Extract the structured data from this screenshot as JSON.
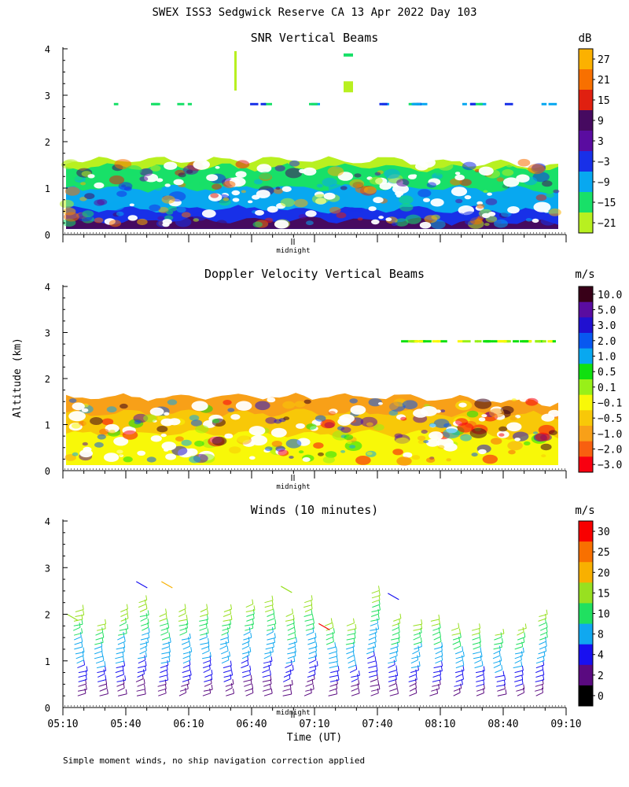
{
  "page": {
    "title": "SWEX ISS3 Sedgwick Reserve CA  13 Apr 2022 Day 103",
    "ylabel": "Altitude (km)",
    "xlabel": "Time (UT)",
    "footnote": "Simple moment winds, no ship navigation correction applied",
    "midnight_label": "midnight"
  },
  "chart_data": [
    {
      "type": "heatmap",
      "title": "SNR Vertical Beams",
      "colorbar_title": "dB",
      "ylim": [
        0,
        4
      ],
      "yticks": [
        0,
        1,
        2,
        3,
        4
      ],
      "xlim_hours": [
        5.1667,
        9.1667
      ],
      "colorbar": {
        "labels": [
          "27",
          "21",
          "15",
          "9",
          "3",
          "−3",
          "−9",
          "−15",
          "−21"
        ],
        "colors": [
          "#fcb100",
          "#f87000",
          "#e02010",
          "#460a60",
          "#5a0ca0",
          "#1830e8",
          "#08a8f0",
          "#18e068",
          "#b8f020"
        ]
      },
      "layers": [
        {
          "name": "strong",
          "top_km": 0.3,
          "color": "#460a60"
        },
        {
          "name": "mid",
          "top_km": 0.55,
          "color": "#1830e8"
        },
        {
          "name": "moderate",
          "top_km": 1.0,
          "color": "#08a8f0"
        },
        {
          "name": "weak",
          "top_km": 1.45,
          "color": "#18e068"
        },
        {
          "name": "faint",
          "top_km": 1.6,
          "color": "#b8f020"
        }
      ],
      "sparse_layer_km": 2.8
    },
    {
      "type": "heatmap",
      "title": "Doppler Velocity Vertical Beams",
      "colorbar_title": "m/s",
      "ylim": [
        0,
        4
      ],
      "yticks": [
        0,
        1,
        2,
        3,
        4
      ],
      "xlim_hours": [
        5.1667,
        9.1667
      ],
      "colorbar": {
        "labels": [
          "10.0",
          "5.0",
          "3.0",
          "2.0",
          "1.0",
          "0.5",
          "0.1",
          "−0.1",
          "−0.5",
          "−1.0",
          "−2.0",
          "−3.0"
        ],
        "colors": [
          "#380018",
          "#5a0ca0",
          "#2010d0",
          "#0858f0",
          "#08a8f0",
          "#10e010",
          "#98f018",
          "#f8f808",
          "#f8c808",
          "#f8a018",
          "#f86010",
          "#f80010"
        ]
      },
      "layers": [
        {
          "name": "near-zero",
          "top_km": 0.8,
          "color": "#f8f808"
        },
        {
          "name": "slight-down",
          "top_km": 1.25,
          "color": "#f8c808"
        },
        {
          "name": "down",
          "top_km": 1.6,
          "color": "#f8a018"
        }
      ],
      "sparse_layer_km": 2.8
    },
    {
      "type": "wind-barbs",
      "title": "Winds (10 minutes)",
      "colorbar_title": "m/s",
      "ylim": [
        0,
        4
      ],
      "yticks": [
        0,
        1,
        2,
        3,
        4
      ],
      "xlim_hours": [
        5.1667,
        9.1667
      ],
      "xtick_labels": [
        "05:10",
        "05:40",
        "06:10",
        "06:40",
        "07:10",
        "07:40",
        "08:10",
        "08:40",
        "09:10"
      ],
      "xtick_hours": [
        5.1667,
        5.6667,
        6.1667,
        6.6667,
        7.1667,
        7.6667,
        8.1667,
        8.6667,
        9.1667
      ],
      "colorbar": {
        "labels": [
          "30",
          "25",
          "20",
          "15",
          "10",
          "8",
          "4",
          "2",
          "0"
        ],
        "colors": [
          "#f80000",
          "#f87000",
          "#f8b000",
          "#98e020",
          "#20e060",
          "#10a8f0",
          "#1810f0",
          "#5a0a80",
          "#000000"
        ]
      },
      "profile_times_hours": [
        5.333,
        5.5,
        5.667,
        5.833,
        6.0,
        6.167,
        6.333,
        6.5,
        6.667,
        6.833,
        7.0,
        7.167,
        7.333,
        7.5,
        7.667,
        7.833,
        8.0,
        8.167,
        8.333,
        8.5,
        8.667,
        8.833,
        9.0
      ],
      "profile_tops_km": [
        2.1,
        1.85,
        2.1,
        2.3,
        2.0,
        2.1,
        2.15,
        2.1,
        2.25,
        2.3,
        2.05,
        2.3,
        1.8,
        1.85,
        2.55,
        1.9,
        1.8,
        1.9,
        1.7,
        1.75,
        1.65,
        1.7,
        2.0
      ]
    }
  ]
}
